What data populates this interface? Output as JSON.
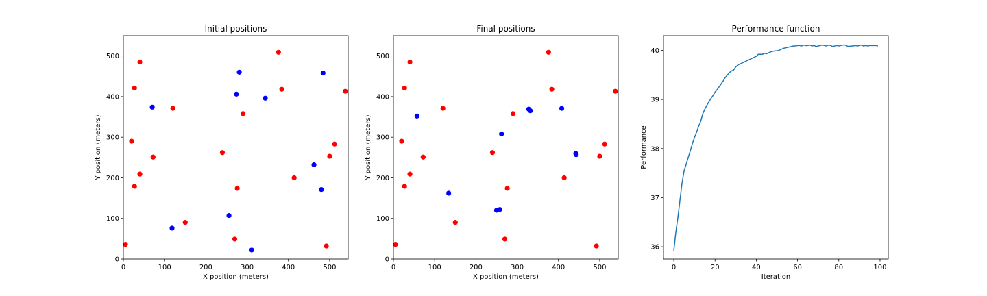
{
  "chart_data": [
    {
      "type": "scatter",
      "title": "Initial positions",
      "xlabel": "X position (meters)",
      "ylabel": "Y position (meters)",
      "xlim": [
        0,
        545
      ],
      "ylim": [
        0,
        550
      ],
      "xticks": [
        "0",
        "100",
        "200",
        "300",
        "400",
        "500"
      ],
      "yticks": [
        "0",
        "100",
        "200",
        "300",
        "400",
        "500"
      ],
      "grid": false,
      "series": [
        {
          "color": "#ff0000",
          "points": [
            [
              5,
              36
            ],
            [
              20,
              290
            ],
            [
              27,
              421
            ],
            [
              27,
              179
            ],
            [
              40,
              485
            ],
            [
              40,
              209
            ],
            [
              72,
              251
            ],
            [
              120,
              371
            ],
            [
              150,
              90
            ],
            [
              240,
              262
            ],
            [
              270,
              49
            ],
            [
              276,
              174
            ],
            [
              290,
              358
            ],
            [
              376,
              509
            ],
            [
              384,
              418
            ],
            [
              414,
              200
            ],
            [
              492,
              32
            ],
            [
              500,
              253
            ],
            [
              512,
              283
            ],
            [
              538,
              413
            ]
          ]
        },
        {
          "color": "#0000ff",
          "points": [
            [
              70,
              374
            ],
            [
              118,
              76
            ],
            [
              256,
              107
            ],
            [
              274,
              406
            ],
            [
              281,
              460
            ],
            [
              311,
              22
            ],
            [
              344,
              396
            ],
            [
              462,
              232
            ],
            [
              480,
              171
            ],
            [
              484,
              458
            ]
          ]
        }
      ]
    },
    {
      "type": "scatter",
      "title": "Final positions",
      "xlabel": "X position (meters)",
      "ylabel": "Y position (meters)",
      "xlim": [
        0,
        545
      ],
      "ylim": [
        0,
        550
      ],
      "xticks": [
        "0",
        "100",
        "200",
        "300",
        "400",
        "500"
      ],
      "yticks": [
        "0",
        "100",
        "200",
        "300",
        "400",
        "500"
      ],
      "grid": false,
      "series": [
        {
          "color": "#ff0000",
          "points": [
            [
              5,
              36
            ],
            [
              20,
              290
            ],
            [
              27,
              421
            ],
            [
              27,
              179
            ],
            [
              40,
              485
            ],
            [
              40,
              209
            ],
            [
              72,
              251
            ],
            [
              120,
              371
            ],
            [
              150,
              90
            ],
            [
              240,
              262
            ],
            [
              270,
              49
            ],
            [
              276,
              174
            ],
            [
              290,
              358
            ],
            [
              376,
              509
            ],
            [
              384,
              418
            ],
            [
              414,
              200
            ],
            [
              492,
              32
            ],
            [
              500,
              253
            ],
            [
              512,
              283
            ],
            [
              538,
              413
            ]
          ]
        },
        {
          "color": "#0000ff",
          "points": [
            [
              57,
              352
            ],
            [
              134,
              162
            ],
            [
              250,
              120
            ],
            [
              258,
              122
            ],
            [
              262,
              308
            ],
            [
              328,
              369
            ],
            [
              332,
              365
            ],
            [
              408,
              371
            ],
            [
              442,
              260
            ],
            [
              443,
              257
            ]
          ]
        }
      ]
    },
    {
      "type": "line",
      "title": "Performance function",
      "xlabel": "Iteration",
      "ylabel": "Performance",
      "xlim": [
        -5,
        104
      ],
      "ylim": [
        35.75,
        40.3
      ],
      "xticks": [
        "0",
        "20",
        "40",
        "60",
        "80",
        "100"
      ],
      "yticks": [
        "36",
        "37",
        "38",
        "39",
        "40"
      ],
      "grid": false,
      "series": [
        {
          "color": "#1f77b4",
          "x": [
            0,
            1,
            2,
            3,
            4,
            5,
            6,
            7,
            8,
            9,
            10,
            11,
            12,
            13,
            14,
            15,
            16,
            17,
            18,
            19,
            20,
            21,
            22,
            23,
            24,
            25,
            26,
            27,
            28,
            29,
            30,
            31,
            32,
            33,
            34,
            35,
            36,
            37,
            38,
            39,
            40,
            41,
            42,
            43,
            44,
            45,
            46,
            47,
            48,
            49,
            50,
            51,
            52,
            53,
            54,
            55,
            56,
            57,
            58,
            59,
            60,
            61,
            62,
            63,
            64,
            65,
            66,
            67,
            68,
            69,
            70,
            71,
            72,
            73,
            74,
            75,
            76,
            77,
            78,
            79,
            80,
            81,
            82,
            83,
            84,
            85,
            86,
            87,
            88,
            89,
            90,
            91,
            92,
            93,
            94,
            95,
            96,
            97,
            98,
            99
          ],
          "values": [
            35.92,
            36.3,
            36.6,
            36.95,
            37.3,
            37.55,
            37.68,
            37.82,
            37.95,
            38.1,
            38.22,
            38.33,
            38.45,
            38.55,
            38.7,
            38.8,
            38.88,
            38.95,
            39.02,
            39.08,
            39.15,
            39.2,
            39.26,
            39.32,
            39.38,
            39.45,
            39.5,
            39.55,
            39.58,
            39.6,
            39.66,
            39.7,
            39.72,
            39.74,
            39.76,
            39.78,
            39.8,
            39.82,
            39.84,
            39.86,
            39.88,
            39.92,
            39.92,
            39.92,
            39.94,
            39.93,
            39.95,
            39.97,
            39.98,
            39.99,
            39.99,
            40.0,
            40.02,
            40.04,
            40.05,
            40.06,
            40.07,
            40.08,
            40.09,
            40.09,
            40.1,
            40.1,
            40.09,
            40.11,
            40.1,
            40.1,
            40.11,
            40.09,
            40.1,
            40.08,
            40.09,
            40.1,
            40.11,
            40.1,
            40.09,
            40.11,
            40.1,
            40.08,
            40.09,
            40.1,
            40.09,
            40.1,
            40.11,
            40.11,
            40.09,
            40.08,
            40.09,
            40.09,
            40.1,
            40.09,
            40.1,
            40.11,
            40.09,
            40.1,
            40.09,
            40.1,
            40.1,
            40.1,
            40.1,
            40.09
          ]
        }
      ]
    }
  ]
}
